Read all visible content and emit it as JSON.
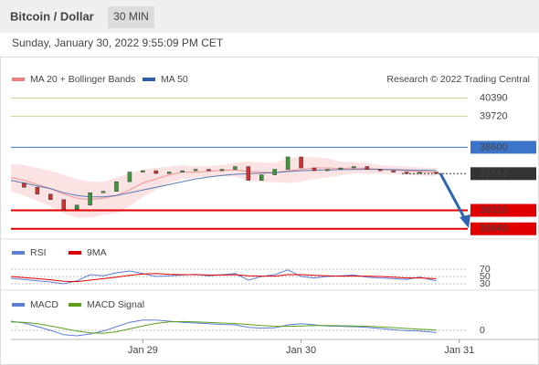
{
  "header": {
    "title": "Bitcoin / Dollar",
    "timeframe": "30 MIN",
    "timestamp": "Sunday, January 30, 2022 9:55:09 PM CET"
  },
  "chart_data": [
    {
      "type": "candlestick",
      "source": "Research © 2022 Trading Central",
      "x": [
        0,
        2,
        4,
        6,
        8,
        10,
        12,
        14,
        16,
        18,
        20,
        22,
        24,
        26,
        28,
        30,
        32,
        34,
        36,
        38,
        40,
        42,
        44,
        46,
        48,
        50,
        52,
        54,
        56,
        58,
        60,
        62,
        64.5
      ],
      "close": [
        37300,
        37150,
        36900,
        36700,
        36350,
        36500,
        36950,
        37000,
        37350,
        37700,
        37750,
        37650,
        37700,
        37750,
        37800,
        37750,
        37800,
        37900,
        37400,
        37600,
        37800,
        38250,
        37850,
        37750,
        37800,
        37850,
        37900,
        37800,
        37750,
        37700,
        37650,
        37700,
        37643
      ],
      "up_color": "#3a9a3a",
      "down_color": "#d43030",
      "series": [
        {
          "name": "MA 20 + Bollinger Bands",
          "color": "#f08080",
          "values": [
            37500,
            37400,
            37250,
            37100,
            36900,
            36750,
            36700,
            36750,
            36850,
            37050,
            37300,
            37450,
            37600,
            37700,
            37700,
            37730,
            37760,
            37780,
            37730,
            37700,
            37680,
            37750,
            37800,
            37850,
            37850,
            37830,
            37850,
            37830,
            37800,
            37780,
            37750,
            37720,
            37700
          ],
          "upper": [
            38000,
            37950,
            37850,
            37750,
            37600,
            37450,
            37350,
            37350,
            37500,
            37650,
            37800,
            37850,
            37900,
            37950,
            37900,
            37930,
            37960,
            38030,
            38080,
            38050,
            38030,
            38200,
            38250,
            38250,
            38200,
            38080,
            38050,
            38030,
            37950,
            37930,
            37900,
            37870,
            37850
          ],
          "lower": [
            37000,
            36850,
            36650,
            36450,
            36200,
            36050,
            36050,
            36150,
            36200,
            36450,
            36800,
            37050,
            37300,
            37450,
            37500,
            37530,
            37560,
            37530,
            37380,
            37350,
            37330,
            37300,
            37350,
            37450,
            37500,
            37580,
            37650,
            37630,
            37650,
            37630,
            37600,
            37570,
            37550
          ]
        },
        {
          "name": "MA 50",
          "color": "#2f5fa8",
          "values": [
            37400,
            37300,
            37200,
            37100,
            36950,
            36850,
            36800,
            36800,
            36850,
            36950,
            37050,
            37150,
            37250,
            37350,
            37450,
            37520,
            37580,
            37620,
            37640,
            37660,
            37680,
            37720,
            37750,
            37770,
            37780,
            37790,
            37800,
            37800,
            37800,
            37790,
            37780,
            37770,
            37760
          ]
        }
      ],
      "levels": [
        {
          "value": 40390,
          "color": "#5ca01e",
          "boxed": false,
          "line_width": 1,
          "dashed": false
        },
        {
          "value": 39720,
          "color": "#5ca01e",
          "boxed": false,
          "line_width": 1,
          "dashed": false
        },
        {
          "value": 38600,
          "color": "#3b74c9",
          "boxed": true,
          "line_width": 1,
          "dashed": false
        },
        {
          "value": 37643,
          "color": "#333333",
          "boxed": true,
          "line_width": 1,
          "dashed": true
        },
        {
          "value": 36310,
          "color": "#e00000",
          "boxed": true,
          "line_width": 2,
          "dashed": false
        },
        {
          "value": 35640,
          "color": "#e00000",
          "boxed": true,
          "line_width": 2,
          "dashed": false
        }
      ],
      "xlim": [
        0,
        69
      ],
      "xticks": [
        {
          "value": 20,
          "label": "Jan 29"
        },
        {
          "value": 44,
          "label": "Jan 30"
        },
        {
          "value": 68,
          "label": "Jan 31"
        }
      ],
      "ylim": [
        35400,
        40800
      ]
    },
    {
      "type": "line",
      "series": [
        {
          "name": "RSI",
          "color": "#5b7fd6",
          "values": [
            45,
            42,
            38,
            35,
            30,
            38,
            55,
            52,
            60,
            65,
            58,
            50,
            52,
            54,
            56,
            52,
            55,
            58,
            40,
            50,
            55,
            68,
            50,
            46,
            50,
            52,
            54,
            48,
            46,
            44,
            42,
            48,
            38
          ]
        },
        {
          "name": "9MA",
          "color": "#e00000",
          "values": [
            50,
            47,
            44,
            41,
            37,
            36,
            40,
            44,
            48,
            53,
            57,
            58,
            56,
            55,
            55,
            54,
            54,
            55,
            52,
            51,
            51,
            55,
            55,
            53,
            52,
            51,
            51,
            51,
            50,
            48,
            46,
            46,
            44
          ]
        }
      ],
      "ylim": [
        0,
        100
      ],
      "yticks": [
        70,
        50,
        30
      ]
    },
    {
      "type": "line",
      "series": [
        {
          "name": "MACD",
          "color": "#5b7fd6",
          "values": [
            250,
            200,
            100,
            0,
            -120,
            -150,
            -100,
            -20,
            100,
            220,
            280,
            280,
            250,
            220,
            200,
            180,
            160,
            150,
            80,
            60,
            70,
            150,
            180,
            150,
            120,
            110,
            100,
            80,
            50,
            20,
            -10,
            -20,
            -60
          ]
        },
        {
          "name": "MACD Signal",
          "color": "#5ca01e",
          "values": [
            230,
            220,
            180,
            120,
            50,
            -20,
            -70,
            -80,
            -40,
            40,
            120,
            190,
            230,
            240,
            230,
            215,
            200,
            185,
            160,
            130,
            110,
            110,
            120,
            130,
            130,
            125,
            120,
            110,
            95,
            75,
            50,
            30,
            10
          ]
        }
      ],
      "ylim": [
        -300,
        300
      ],
      "yticks": [
        0
      ]
    }
  ]
}
